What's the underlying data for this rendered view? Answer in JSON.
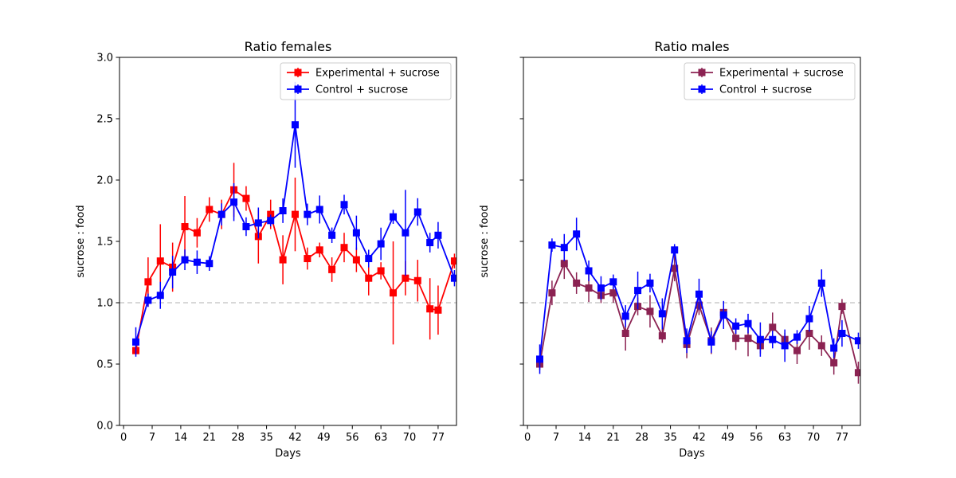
{
  "chart_data": [
    {
      "type": "line",
      "title": "Ratio females",
      "xlabel": "Days",
      "ylabel": "sucrose : food",
      "xlim": [
        -1,
        81.5
      ],
      "ylim": [
        0,
        3.0
      ],
      "xticks": [
        0,
        7,
        14,
        21,
        28,
        35,
        42,
        49,
        56,
        63,
        70,
        77
      ],
      "yticks": [
        0.0,
        0.5,
        1.0,
        1.5,
        2.0,
        2.5,
        3.0
      ],
      "ytick_labels": [
        "0.0",
        "0.5",
        "1.0",
        "1.5",
        "2.0",
        "2.5",
        "3.0"
      ],
      "reference_line": 1.0,
      "show_y_tick_labels": true,
      "legend_position": "top-right",
      "series": [
        {
          "name": "Experimental + sucrose",
          "color": "#ff0000",
          "x": [
            3,
            6,
            9,
            12,
            15,
            18,
            21,
            24,
            27,
            30,
            33,
            36,
            39,
            42,
            45,
            48,
            51,
            54,
            57,
            60,
            63,
            66,
            69,
            72,
            75,
            77,
            81
          ],
          "y": [
            0.61,
            1.17,
            1.34,
            1.29,
            1.62,
            1.57,
            1.76,
            1.72,
            1.92,
            1.85,
            1.54,
            1.72,
            1.35,
            1.72,
            1.36,
            1.43,
            1.27,
            1.45,
            1.35,
            1.2,
            1.26,
            1.08,
            1.2,
            1.18,
            0.95,
            0.94,
            1.34
          ],
          "err": [
            0.0,
            0.2,
            0.3,
            0.2,
            0.25,
            0.12,
            0.1,
            0.12,
            0.22,
            0.1,
            0.22,
            0.12,
            0.2,
            0.3,
            0.09,
            0.06,
            0.1,
            0.12,
            0.1,
            0.14,
            0.07,
            0.42,
            0.14,
            0.17,
            0.25,
            0.2,
            0.06
          ]
        },
        {
          "name": "Control + sucrose",
          "color": "#0000ff",
          "x": [
            3,
            6,
            9,
            12,
            15,
            18,
            21,
            24,
            27,
            30,
            33,
            36,
            39,
            42,
            45,
            48,
            51,
            54,
            57,
            60,
            63,
            66,
            69,
            72,
            75,
            77,
            81
          ],
          "y": [
            0.68,
            1.02,
            1.06,
            1.25,
            1.35,
            1.33,
            1.32,
            1.72,
            1.82,
            1.62,
            1.65,
            1.67,
            1.75,
            2.45,
            1.72,
            1.76,
            1.55,
            1.8,
            1.57,
            1.36,
            1.48,
            1.7,
            1.57,
            1.74,
            1.49,
            1.55,
            1.2
          ]
        }
      ]
    },
    {
      "type": "line",
      "title": "Ratio males",
      "xlabel": "Days",
      "ylabel": "sucrose : food",
      "xlim": [
        -1,
        81.5
      ],
      "ylim": [
        0,
        3.0
      ],
      "xticks": [
        0,
        7,
        14,
        21,
        28,
        35,
        42,
        49,
        56,
        63,
        70,
        77
      ],
      "yticks": [
        0.0,
        0.5,
        1.0,
        1.5,
        2.0,
        2.5,
        3.0
      ],
      "ytick_labels": [],
      "reference_line": 1.0,
      "show_y_tick_labels": false,
      "legend_position": "top-right",
      "series": [
        {
          "name": "Experimental + sucrose",
          "color": "#8b2252",
          "x": [
            3,
            6,
            9,
            12,
            15,
            18,
            21,
            24,
            27,
            30,
            33,
            36,
            39,
            42,
            45,
            48,
            51,
            54,
            57,
            60,
            63,
            66,
            69,
            72,
            75,
            77,
            81
          ],
          "y": [
            0.5,
            1.08,
            1.32,
            1.16,
            1.12,
            1.06,
            1.08,
            0.75,
            0.97,
            0.93,
            0.73,
            1.28,
            0.66,
            0.98,
            0.69,
            0.92,
            0.71,
            0.71,
            0.65,
            0.8,
            0.7,
            0.61,
            0.75,
            0.65,
            0.51,
            0.97,
            0.43
          ]
        },
        {
          "name": "Control + sucrose",
          "color": "#0000ff",
          "x": [
            3,
            6,
            9,
            12,
            15,
            18,
            21,
            24,
            27,
            30,
            33,
            36,
            39,
            42,
            45,
            48,
            51,
            54,
            57,
            60,
            63,
            66,
            69,
            72,
            75,
            77,
            81
          ],
          "y": [
            0.54,
            1.47,
            1.45,
            1.56,
            1.26,
            1.12,
            1.17,
            0.89,
            1.1,
            1.16,
            0.91,
            1.43,
            0.69,
            1.07,
            0.68,
            0.9,
            0.81,
            0.83,
            0.7,
            0.7,
            0.65,
            0.72,
            0.87,
            1.16,
            0.63,
            0.75,
            0.69
          ]
        }
      ]
    }
  ]
}
